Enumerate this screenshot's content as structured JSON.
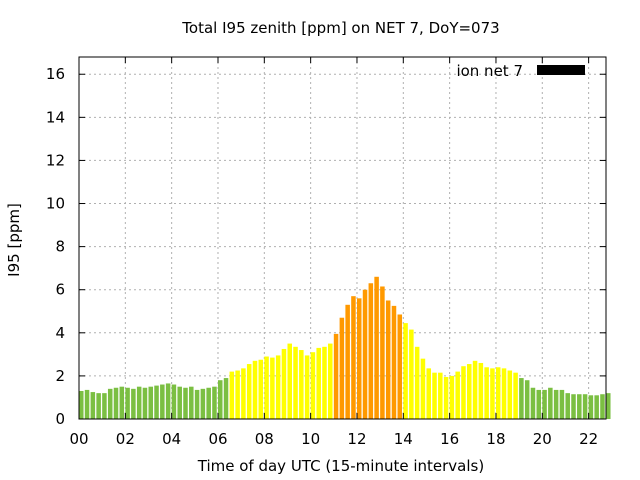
{
  "chart_data": {
    "type": "bar",
    "title": "Total I95 zenith [ppm] on NET 7, DoY=073",
    "xlabel": "Time of day UTC (15-minute intervals)",
    "ylabel": "I95 [ppm]",
    "xlim": [
      0,
      22.75
    ],
    "ylim": [
      0,
      16.8
    ],
    "x_ticks": [
      "00",
      "02",
      "04",
      "06",
      "08",
      "10",
      "12",
      "14",
      "16",
      "18",
      "20",
      "22"
    ],
    "y_ticks": [
      "0",
      "2",
      "4",
      "6",
      "8",
      "10",
      "12",
      "14",
      "16"
    ],
    "grid": true,
    "legend": {
      "position": "top-right",
      "entries": [
        {
          "label": "ion net 7",
          "color": "#000000"
        }
      ]
    },
    "interval_hours": 0.25,
    "colors": {
      "low": "#7bbf42",
      "medium": "#ffff00",
      "high": "#ff9900",
      "line": "#000000",
      "grid": "#b0b0b0"
    },
    "levels": {
      "medium_from_index": 26,
      "high_from_index": 44,
      "medium2_from_index": 56,
      "low2_from_index": 76
    },
    "values": [
      1.3,
      1.35,
      1.25,
      1.2,
      1.2,
      1.4,
      1.45,
      1.5,
      1.45,
      1.4,
      1.5,
      1.45,
      1.5,
      1.55,
      1.6,
      1.65,
      1.6,
      1.5,
      1.45,
      1.5,
      1.35,
      1.4,
      1.45,
      1.5,
      1.8,
      1.9,
      2.2,
      2.25,
      2.35,
      2.55,
      2.7,
      2.75,
      2.9,
      2.85,
      2.95,
      3.25,
      3.5,
      3.35,
      3.2,
      2.95,
      3.1,
      3.3,
      3.35,
      3.5,
      3.95,
      4.7,
      5.3,
      5.7,
      5.6,
      6.0,
      6.3,
      6.6,
      6.15,
      5.5,
      5.25,
      4.85,
      4.45,
      4.15,
      3.35,
      2.8,
      2.35,
      2.15,
      2.15,
      1.95,
      2.0,
      2.2,
      2.45,
      2.55,
      2.7,
      2.6,
      2.4,
      2.35,
      2.4,
      2.35,
      2.25,
      2.15,
      1.9,
      1.8,
      1.45,
      1.35,
      1.35,
      1.45,
      1.35,
      1.35,
      1.2,
      1.15,
      1.15,
      1.15,
      1.1,
      1.1,
      1.15,
      1.2
    ]
  }
}
